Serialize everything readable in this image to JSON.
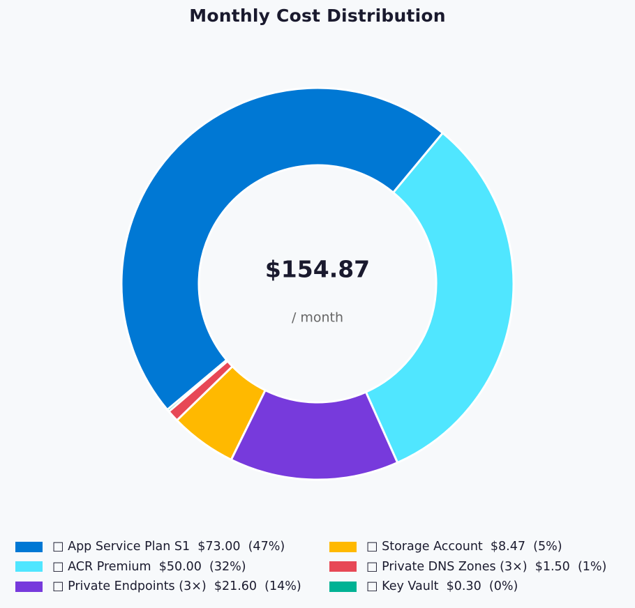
{
  "chart_data": {
    "type": "pie",
    "style": "donut",
    "title": "Monthly Cost Distribution",
    "center_total": "$154.87",
    "center_subtitle": "/ month",
    "slices": [
      {
        "label": "App Service Plan S1",
        "legend_text": "□ App Service Plan S1  $73.00  (47%)",
        "value": 73.0,
        "percent": 47,
        "color": "#0078d4"
      },
      {
        "label": "ACR Premium",
        "legend_text": "□ ACR Premium  $50.00  (32%)",
        "value": 50.0,
        "percent": 32,
        "color": "#50e6ff"
      },
      {
        "label": "Private Endpoints (3×)",
        "legend_text": "□ Private Endpoints (3×)  $21.60  (14%)",
        "value": 21.6,
        "percent": 14,
        "color": "#773adc"
      },
      {
        "label": "Storage Account",
        "legend_text": "□ Storage Account  $8.47  (5%)",
        "value": 8.47,
        "percent": 5,
        "color": "#ffb900"
      },
      {
        "label": "Private DNS Zones (3×)",
        "legend_text": "□ Private DNS Zones (3×)  $1.50  (1%)",
        "value": 1.5,
        "percent": 1,
        "color": "#e74856"
      },
      {
        "label": "Key Vault",
        "legend_text": "□ Key Vault  $0.30  (0%)",
        "value": 0.3,
        "percent": 0,
        "color": "#00b294"
      }
    ],
    "legend_placement": "bottom",
    "start_angle_deg": 220,
    "direction": "clockwise"
  }
}
